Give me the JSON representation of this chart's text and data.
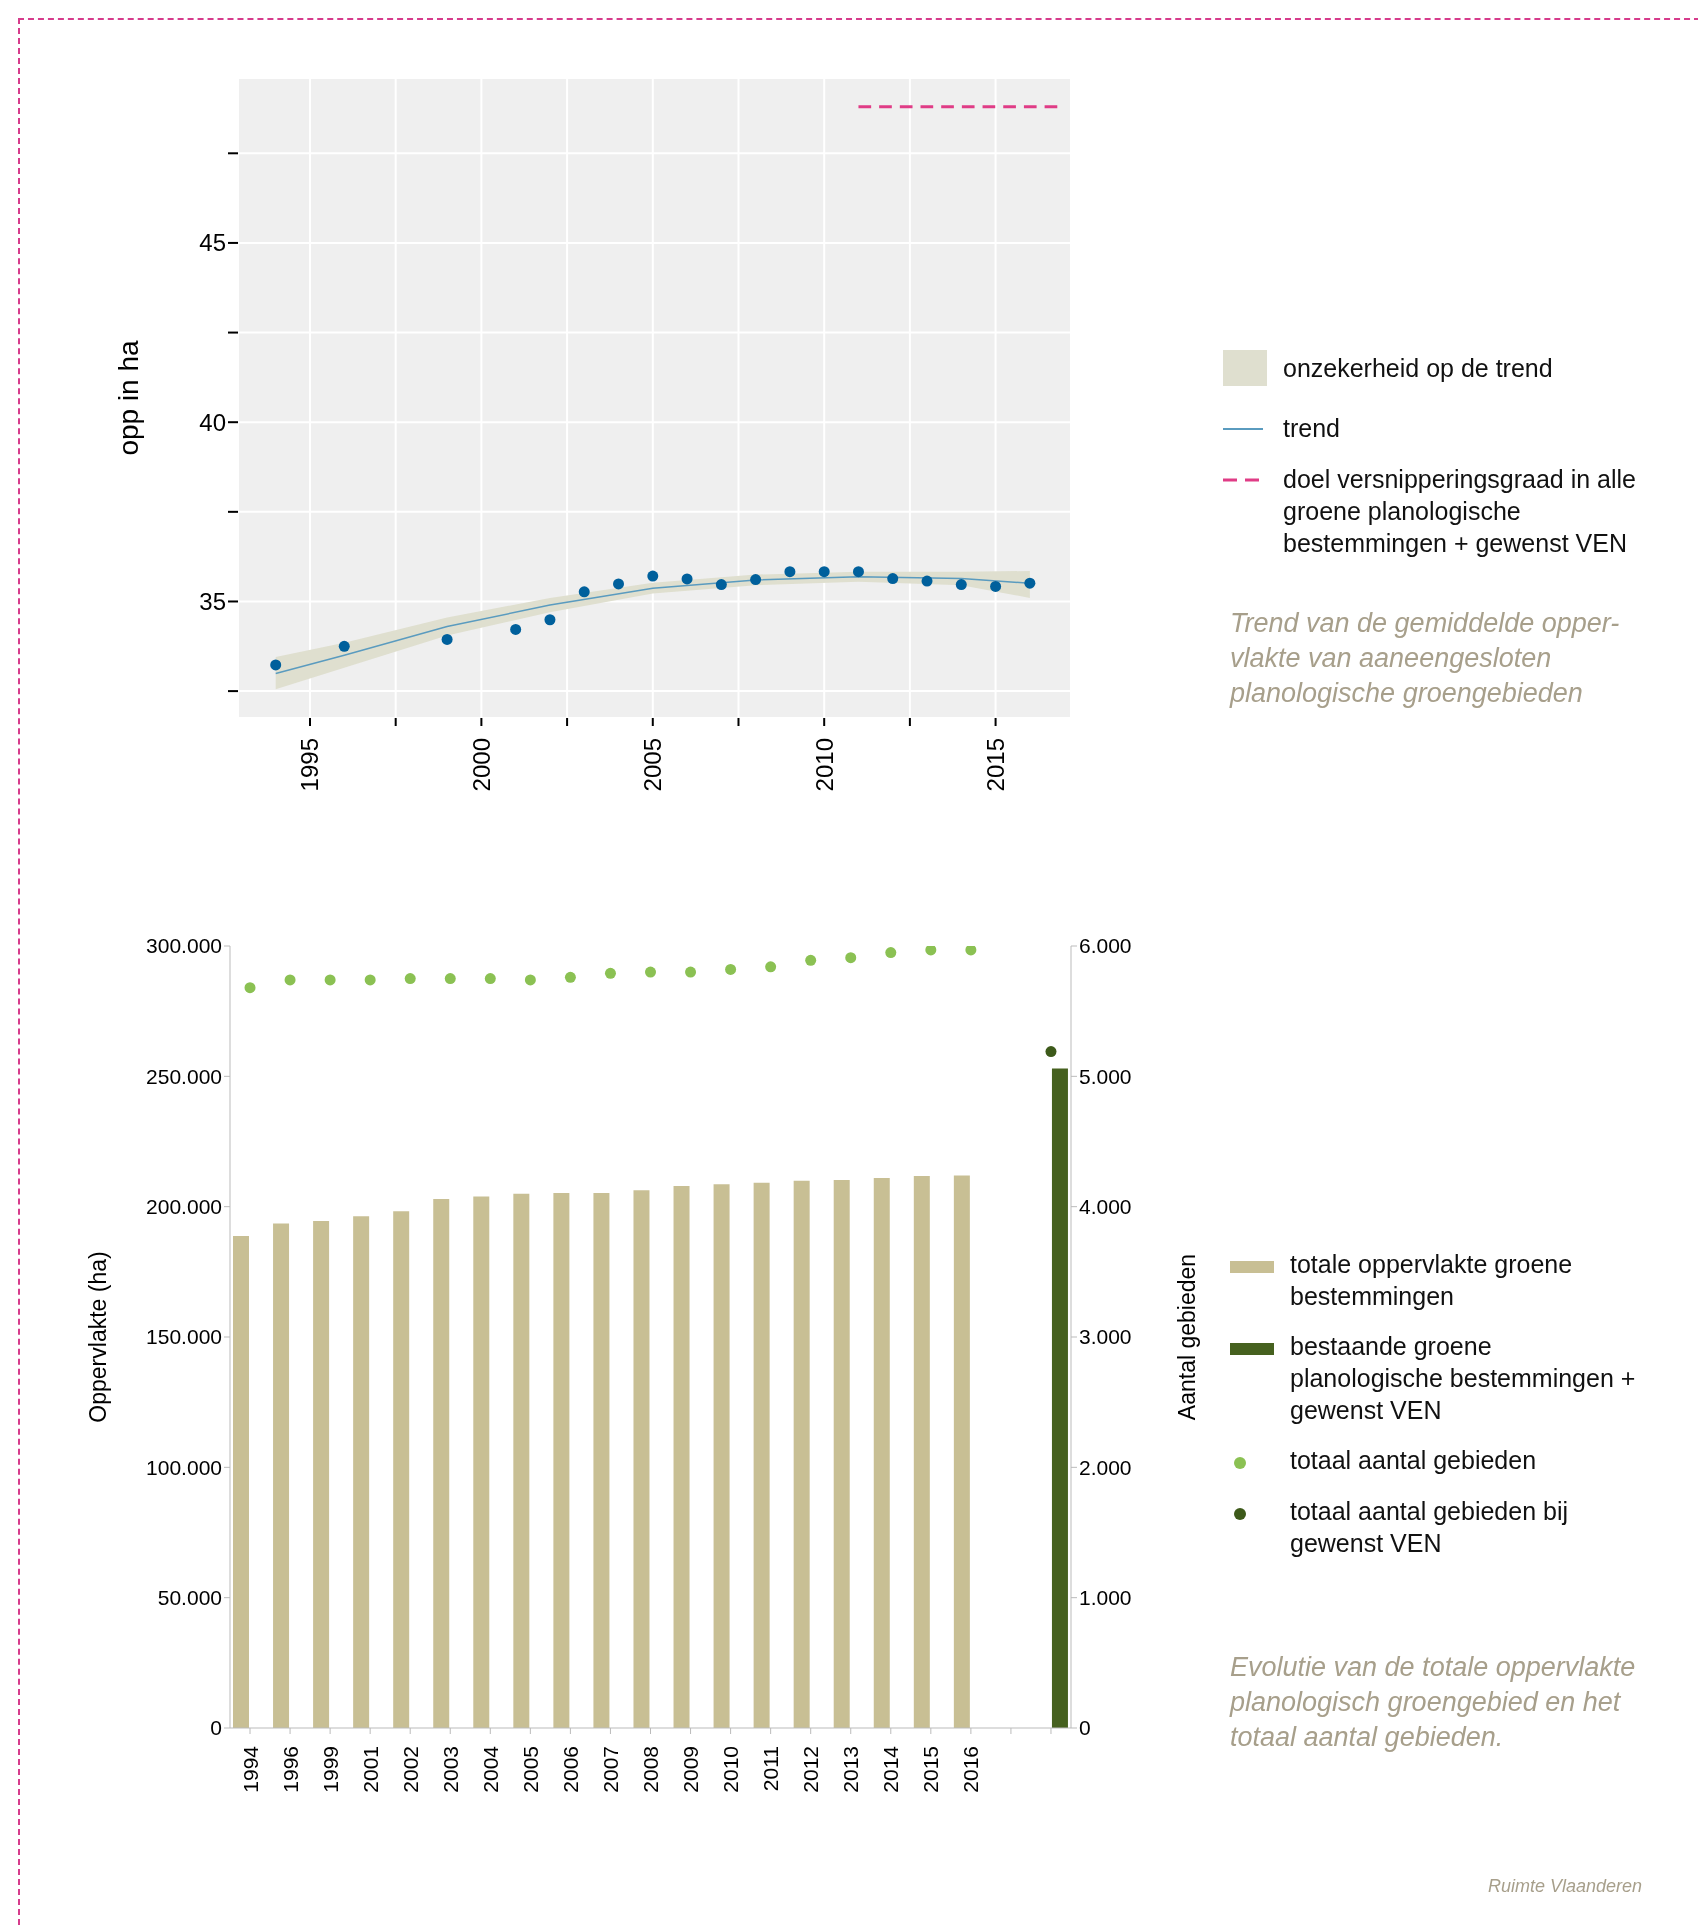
{
  "chart_data": [
    {
      "type": "scatter",
      "ylabel": "opp in ha",
      "xlim": [
        1992.9,
        2017.2
      ],
      "ylim": [
        31.75,
        49.6
      ],
      "xticks": [
        1995,
        {
          "value": 1997.5,
          "label": null
        },
        2000,
        {
          "value": 2002.5,
          "label": null
        },
        2005,
        {
          "value": 2007.5,
          "label": null
        },
        2010,
        {
          "value": 2012.5,
          "label": null
        },
        2015
      ],
      "yticks": [
        {
          "value": 32.5,
          "label": null
        },
        35,
        {
          "value": 37.5,
          "label": null
        },
        40,
        {
          "value": 42.5,
          "label": null
        },
        45,
        {
          "value": 47.5,
          "label": null
        }
      ],
      "grid": true,
      "legend": "right",
      "series": [
        {
          "type": "line",
          "name": "trend",
          "color": "#5a9bbf",
          "marker": "none",
          "x": [
            1994,
            1996,
            1999,
            2002,
            2005,
            2008,
            2011,
            2014,
            2016
          ],
          "values": [
            32.99,
            33.5,
            34.3,
            34.9,
            35.37,
            35.6,
            35.69,
            35.64,
            35.51
          ],
          "lower": [
            32.55,
            33.15,
            34.05,
            34.7,
            35.22,
            35.45,
            35.55,
            35.45,
            35.1
          ],
          "upper": [
            33.45,
            33.85,
            34.55,
            35.1,
            35.52,
            35.75,
            35.83,
            35.83,
            35.85
          ]
        },
        {
          "type": "line",
          "name": "doel versnipperingsgraad in alle groene planologische bestemmingen + gewenst VEN",
          "color": "#e03c86",
          "line_style": "dashed",
          "marker": "none",
          "x": [
            2011,
            2016.8
          ],
          "values": [
            48.8,
            48.8
          ]
        },
        {
          "type": "scatter",
          "color": "#00609c",
          "marker": "circle",
          "x": [
            1994,
            1996,
            1999,
            2001,
            2002,
            2003,
            2004,
            2005,
            2006,
            2007,
            2008,
            2009,
            2010,
            2011,
            2012,
            2013,
            2014,
            2015,
            2016
          ],
          "values": [
            33.23,
            33.75,
            33.94,
            34.22,
            34.49,
            35.27,
            35.49,
            35.71,
            35.63,
            35.47,
            35.61,
            35.83,
            35.83,
            35.83,
            35.64,
            35.57,
            35.47,
            35.42,
            35.51
          ]
        }
      ],
      "annotations": [
        "Trend van de gemiddelde opper-vlakte van aaneengesloten planologische groengebieden",
        "onzekerheid op de trend"
      ]
    },
    {
      "type": "bar",
      "ylabel": "Oppervlakte (ha)",
      "y2label": "Aantal gebieden",
      "categories": [
        "1994",
        "1996",
        "1999",
        "2001",
        "2002",
        "2003",
        "2004",
        "2005",
        "2006",
        "2007",
        "2008",
        "2009",
        "2010",
        "2011",
        "2012",
        "2013",
        "2014",
        "2015",
        "2016",
        null,
        null
      ],
      "ylim": [
        0,
        300000
      ],
      "yticks": [
        0,
        {
          "value": 50000,
          "label": "50.000"
        },
        {
          "value": 100000,
          "label": "100.000"
        },
        {
          "value": 150000,
          "label": "150.000"
        },
        {
          "value": 200000,
          "label": "200.000"
        },
        {
          "value": 250000,
          "label": "250.000"
        },
        {
          "value": 300000,
          "label": "300.000"
        }
      ],
      "y2lim": [
        0,
        6000
      ],
      "y2ticks": [
        0,
        {
          "value": 1000,
          "label": "1.000"
        },
        {
          "value": 2000,
          "label": "2.000"
        },
        {
          "value": 3000,
          "label": "3.000"
        },
        {
          "value": 4000,
          "label": "4.000"
        },
        {
          "value": 5000,
          "label": "5.000"
        },
        {
          "value": 6000,
          "label": "6.000"
        }
      ],
      "grid": false,
      "legend": "right",
      "series": [
        {
          "type": "bar",
          "name": "totale oppervlakte groene bestemmingen",
          "color": "#c8bf94",
          "values": [
            188700,
            193500,
            194500,
            196300,
            198200,
            202900,
            203900,
            205000,
            205200,
            205200,
            206300,
            207900,
            208600,
            209200,
            209900,
            210200,
            211000,
            211800,
            212000,
            null,
            null
          ]
        },
        {
          "type": "bar",
          "name": "bestaande groene planologische bestemmingen + gewenst VEN",
          "color": "#46611f",
          "values": [
            null,
            null,
            null,
            null,
            null,
            null,
            null,
            null,
            null,
            null,
            null,
            null,
            null,
            null,
            null,
            null,
            null,
            null,
            null,
            null,
            253000
          ]
        },
        {
          "type": "scatter",
          "name": "totaal aantal gebieden",
          "color": "#8bc153",
          "axis": "y2",
          "marker": "circle",
          "values": [
            5680,
            5740,
            5740,
            5740,
            5750,
            5750,
            5750,
            5740,
            5760,
            5790,
            5800,
            5800,
            5820,
            5840,
            5890,
            5910,
            5950,
            5970,
            5970,
            null,
            null
          ]
        },
        {
          "type": "scatter",
          "name": "totaal aantal gebieden bij gewenst VEN",
          "color": "#3d5a1a",
          "axis": "y2",
          "marker": "circle",
          "values": [
            null,
            null,
            null,
            null,
            null,
            null,
            null,
            null,
            null,
            null,
            null,
            null,
            null,
            null,
            null,
            null,
            null,
            null,
            null,
            null,
            5190
          ]
        }
      ],
      "annotations": [
        "Evolutie van de totale oppervlakte planologisch groengebied en het totaal aantal gebieden.",
        "Ruimte Vlaanderen"
      ]
    }
  ]
}
